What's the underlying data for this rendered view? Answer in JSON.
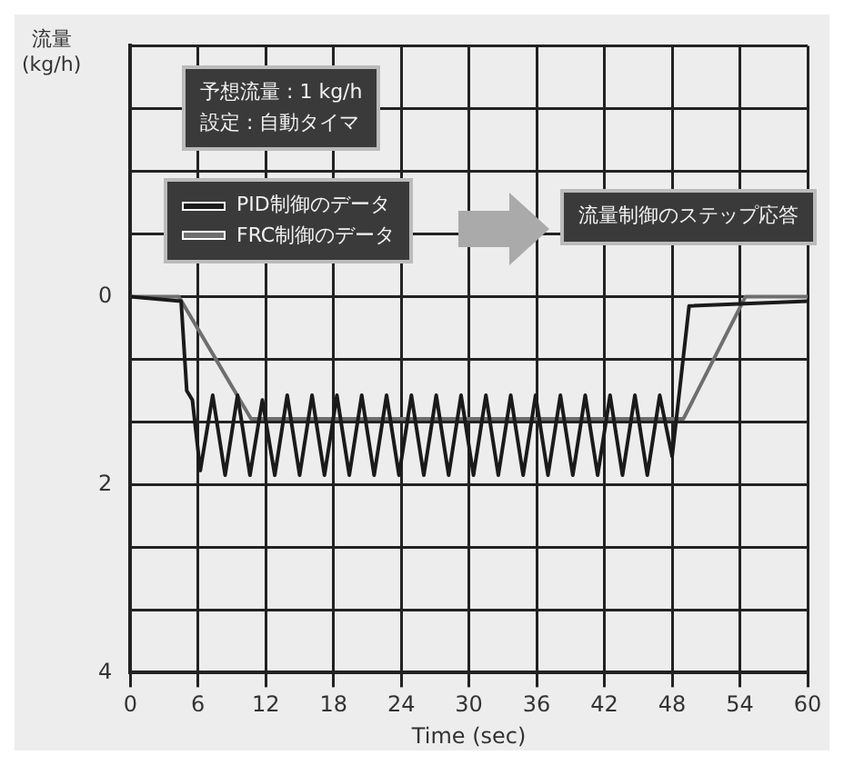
{
  "chart_data": {
    "type": "line",
    "ylabel": "流量\n(kg/h)",
    "xlabel": "Time (sec)",
    "annotations": [
      "予想流量 : 1 kg/h\n設定 : 自動タイマ",
      "流量制御のステップ応答"
    ],
    "series": [
      {
        "name": "PID制御のデータ",
        "color": "#1a1a1a",
        "x": [
          0,
          4.5,
          5.0,
          5.5,
          6.2,
          7.3,
          8.4,
          9.5,
          10.6,
          11.7,
          12.8,
          13.9,
          15.0,
          16.1,
          17.2,
          18.3,
          19.4,
          20.5,
          21.6,
          22.7,
          23.8,
          24.9,
          26.0,
          27.1,
          28.2,
          29.3,
          30.4,
          31.5,
          32.6,
          33.7,
          34.8,
          35.9,
          37.0,
          38.1,
          39.2,
          40.3,
          41.4,
          42.5,
          43.6,
          44.7,
          45.8,
          46.9,
          48.0,
          49.5,
          60
        ],
        "values": [
          0,
          0.05,
          1.0,
          1.1,
          1.85,
          1.05,
          1.9,
          1.05,
          1.9,
          1.1,
          1.9,
          1.05,
          1.9,
          1.05,
          1.9,
          1.05,
          1.9,
          1.05,
          1.9,
          1.05,
          1.9,
          1.05,
          1.9,
          1.05,
          1.9,
          1.05,
          1.9,
          1.05,
          1.9,
          1.05,
          1.9,
          1.05,
          1.9,
          1.05,
          1.9,
          1.05,
          1.9,
          1.05,
          1.9,
          1.05,
          1.9,
          1.05,
          1.7,
          0.1,
          0.05
        ]
      },
      {
        "name": "FRC制御のデータ",
        "color": "#6e6e6e",
        "x": [
          0,
          4.3,
          10.7,
          49.0,
          54.5,
          60
        ],
        "values": [
          0,
          0,
          1.3,
          1.3,
          0,
          0
        ]
      }
    ],
    "xlim": [
      0,
      60
    ],
    "xticks": [
      0,
      6,
      12,
      18,
      24,
      30,
      36,
      42,
      48,
      54,
      60
    ],
    "ylim": [
      4,
      -2.667
    ],
    "yticks": [
      {
        "value": -2.667,
        "label": null
      },
      {
        "value": -2,
        "label": null
      },
      {
        "value": -1.333,
        "label": null
      },
      {
        "value": -0.667,
        "label": null
      },
      0,
      {
        "value": 0.667,
        "label": null
      },
      {
        "value": 1.333,
        "label": null
      },
      2,
      {
        "value": 2.667,
        "label": null
      },
      {
        "value": 3.333,
        "label": null
      },
      4
    ],
    "grid": true,
    "legend": "top left",
    "marker": "none",
    "line_style": "solid"
  }
}
